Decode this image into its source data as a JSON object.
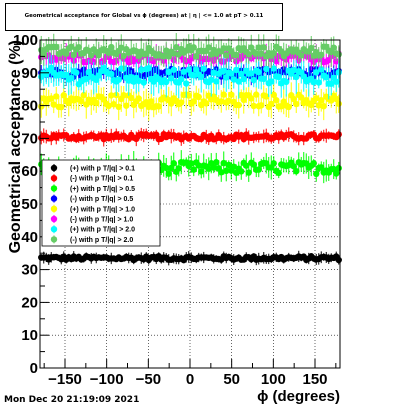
{
  "chart_data": {
    "type": "scatter",
    "title": "Geometrical acceptance for Global vs ϕ (degrees) at | η | <= 1.0 at pT > 0.11",
    "xlabel": "ϕ (degrees)",
    "ylabel": "Geometrical acceptance (%)",
    "xlim": [
      -180,
      180
    ],
    "ylim": [
      0,
      100
    ],
    "x_ticks": [
      -150,
      -100,
      -50,
      0,
      50,
      100,
      150
    ],
    "x_tick_labels": [
      "−150",
      "−100",
      "−50",
      "0",
      "50",
      "100",
      "150"
    ],
    "y_ticks": [
      0,
      10,
      20,
      30,
      40,
      50,
      60,
      70,
      80,
      90,
      100
    ],
    "y_tick_labels": [
      "0",
      "10",
      "20",
      "30",
      "40",
      "50",
      "60",
      "70",
      "80",
      "90",
      "100"
    ],
    "grid": true,
    "legend_position": "left-center",
    "x_bin_step_deg": 3,
    "series": [
      {
        "name": "(+) with p T/|q| > 0.1",
        "color": "#000000",
        "mean": 33.5,
        "spread": 0.6,
        "errbar": 1.2
      },
      {
        "name": "(-) with p T/|q| > 0.1",
        "color": "#ff0000",
        "mean": 70.5,
        "spread": 0.8,
        "errbar": 1.5
      },
      {
        "name": "(+) with p T/|q| > 0.5",
        "color": "#00ff00",
        "mean": 61.0,
        "spread": 1.8,
        "errbar": 2.5
      },
      {
        "name": "(-) with p T/|q| > 0.5",
        "color": "#0000ff",
        "mean": 90.0,
        "spread": 1.2,
        "errbar": 2.0
      },
      {
        "name": "(+) with p T/|q| > 1.0",
        "color": "#ffff00",
        "mean": 81.5,
        "spread": 2.0,
        "errbar": 3.0
      },
      {
        "name": "(-) with p T/|q| > 1.0",
        "color": "#ff00ff",
        "mean": 94.5,
        "spread": 1.3,
        "errbar": 2.5
      },
      {
        "name": "(+) with p T/|q| > 2.0",
        "color": "#00ffff",
        "mean": 89.0,
        "spread": 2.5,
        "errbar": 3.5
      },
      {
        "name": "(-) with p T/|q| > 2.0",
        "color": "#66cc66",
        "mean": 96.5,
        "spread": 1.5,
        "errbar": 3.0
      }
    ]
  },
  "footer": {
    "timestamp": "Mon Dec 20 21:19:09 2021"
  }
}
